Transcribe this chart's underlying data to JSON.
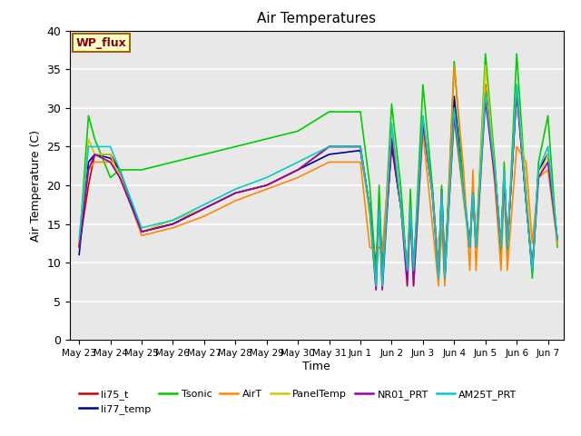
{
  "title": "Air Temperatures",
  "xlabel": "Time",
  "ylabel": "Air Temperature (C)",
  "ylim": [
    0,
    40
  ],
  "bg_color": "#e8e8e8",
  "fig_color": "#ffffff",
  "annotation_text": "WP_flux",
  "annotation_bg": "#ffffcc",
  "annotation_border": "#996600",
  "annotation_text_color": "#880000",
  "series_colors": {
    "li75_t": "#cc0000",
    "li77_temp": "#000099",
    "Tsonic": "#00cc00",
    "AirT": "#ff8800",
    "PanelTemp": "#cccc00",
    "NR01_PRT": "#9900aa",
    "AM25T_PRT": "#00cccc"
  },
  "series_order": [
    "li75_t",
    "li77_temp",
    "Tsonic",
    "AirT",
    "PanelTemp",
    "NR01_PRT",
    "AM25T_PRT"
  ],
  "legend_order": [
    "li75_t",
    "li77_temp",
    "Tsonic",
    "AirT",
    "PanelTemp",
    "NR01_PRT",
    "AM25T_PRT"
  ],
  "xtick_labels": [
    "May 23",
    "May 24",
    "May 25",
    "May 26",
    "May 27",
    "May 28",
    "May 29",
    "May 30",
    "May 31",
    "Jun 1",
    "Jun 2",
    "Jun 3",
    "Jun 4",
    "Jun 5",
    "Jun 6",
    "Jun 7"
  ],
  "lw": 1.2,
  "data": {
    "x": [
      0.0,
      0.3,
      0.5,
      1.0,
      1.3,
      2.0,
      3.0,
      4.0,
      5.0,
      6.0,
      7.0,
      8.0,
      9.0,
      9.3,
      9.5,
      9.6,
      9.7,
      10.0,
      10.3,
      10.5,
      10.6,
      10.7,
      11.0,
      11.3,
      11.5,
      11.6,
      11.7,
      12.0,
      12.3,
      12.5,
      12.6,
      12.7,
      13.0,
      13.3,
      13.5,
      13.6,
      13.7,
      14.0,
      14.3,
      14.5,
      14.7,
      15.0,
      15.3
    ],
    "li75_t": [
      12,
      20,
      24,
      24,
      22,
      14,
      15,
      17,
      19,
      20,
      22,
      25,
      25,
      17,
      9,
      17,
      9,
      25,
      17,
      9,
      17,
      9,
      28,
      19,
      9,
      19,
      9,
      31,
      19,
      12,
      19,
      12,
      33,
      22,
      12,
      22,
      12,
      32,
      18,
      9,
      22,
      24,
      13
    ],
    "li77_temp": [
      11,
      23,
      24,
      23.5,
      22,
      14,
      15,
      17,
      19,
      20,
      22,
      24,
      24.5,
      17,
      9,
      17,
      9,
      25.5,
      17,
      9,
      17,
      9,
      28.5,
      19.5,
      9,
      19.5,
      9,
      31.5,
      19,
      12,
      19,
      12,
      33,
      22,
      12,
      22,
      12,
      33,
      18,
      9,
      22,
      24,
      13
    ],
    "Tsonic": [
      12,
      29,
      26,
      21,
      22,
      22,
      23,
      24,
      25,
      26,
      27,
      29.5,
      29.5,
      20,
      8.5,
      20,
      8.5,
      30.5,
      19.5,
      8.5,
      19.5,
      8.5,
      33,
      20,
      8,
      20,
      8,
      36,
      20,
      12,
      20,
      12,
      37,
      23,
      11,
      23,
      11,
      37,
      19,
      8,
      23,
      29,
      12
    ],
    "AirT": [
      12.5,
      22,
      23,
      23,
      21.5,
      13.5,
      14.5,
      16,
      18,
      19.5,
      21,
      23,
      23,
      12,
      11.5,
      12,
      11.5,
      27,
      17,
      9,
      17,
      7,
      27,
      15,
      7,
      15,
      7,
      35.5,
      22,
      9,
      22,
      9,
      33,
      20,
      9,
      20,
      9,
      25,
      23,
      12.5,
      21,
      22,
      12.5
    ],
    "PanelTemp": [
      12.5,
      26,
      24,
      24,
      21,
      14,
      15.5,
      17,
      19,
      20,
      22,
      25,
      25,
      16,
      6.5,
      16,
      6.5,
      28,
      17,
      7,
      17,
      7,
      28.5,
      19,
      9,
      19,
      9,
      28.5,
      18,
      12,
      18,
      12,
      35.5,
      22,
      12,
      22,
      12,
      33,
      20,
      9,
      21,
      24,
      13
    ],
    "NR01_PRT": [
      12,
      22,
      24,
      23,
      21,
      14,
      15,
      17,
      19,
      20,
      22,
      25,
      25,
      17,
      6.5,
      17,
      6.5,
      26,
      17,
      7,
      17,
      7,
      28,
      19,
      8,
      19,
      8,
      29,
      19,
      12,
      19,
      12,
      31,
      21,
      12,
      21,
      12,
      32,
      18,
      9,
      21,
      23,
      13
    ],
    "AM25T_PRT": [
      13,
      25,
      25,
      25,
      22,
      14.5,
      15.5,
      17.5,
      19.5,
      21,
      23,
      25,
      25,
      17,
      7,
      17,
      7,
      28,
      17,
      9,
      17,
      9,
      29,
      19,
      8,
      19,
      8,
      30,
      19,
      12,
      19,
      12,
      32,
      22,
      12,
      22,
      12,
      33,
      18,
      9,
      22,
      25,
      13
    ]
  }
}
